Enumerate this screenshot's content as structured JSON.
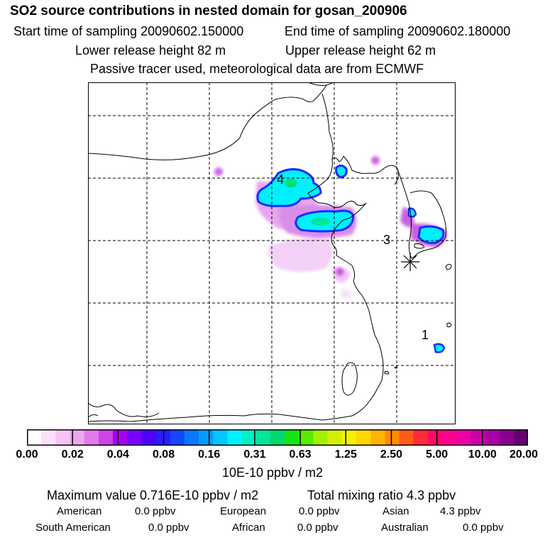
{
  "header": {
    "title": "SO2 source contributions in nested domain for gosan_200906",
    "start_sampling": "Start time of sampling 20090602.150000",
    "end_sampling": "End time of sampling 20090602.180000",
    "lower_release": "Lower release height   82 m",
    "upper_release": "Upper release height   62 m",
    "tracer_note": "Passive tracer used, meteorological data are from ECMWF"
  },
  "map": {
    "source_labels": [
      {
        "id": "source-1",
        "text": "1"
      },
      {
        "id": "source-3",
        "text": "3"
      },
      {
        "id": "source-4",
        "text": "4"
      }
    ],
    "receptor_marker": "asterisk-marker-icon",
    "coast_color": "#000000",
    "grid_style": "dashed"
  },
  "colorbar": {
    "colors": [
      "#ffffff",
      "#fbe2fb",
      "#f5c4f5",
      "#eda6f0",
      "#e07ce9",
      "#cc44e6",
      "#a800f0",
      "#7a00ff",
      "#4e00ff",
      "#2a1cff",
      "#1248ff",
      "#0a78ff",
      "#009cff",
      "#00c8ff",
      "#00f2ff",
      "#00f0c8",
      "#00e69a",
      "#00d870",
      "#14e414",
      "#58ec00",
      "#a2f000",
      "#d4f000",
      "#f4f200",
      "#ffd800",
      "#ffb400",
      "#ff8c00",
      "#ff5c18",
      "#ff2a3a",
      "#ff0a66",
      "#ff0090",
      "#ee00a8",
      "#cc00ac",
      "#aa00a8",
      "#880090",
      "#660070"
    ],
    "tick_labels": [
      "0.00",
      "0.02",
      "0.04",
      "0.08",
      "0.16",
      "0.31",
      "0.63",
      "1.25",
      "2.50",
      "5.00",
      "10.00",
      "20.00"
    ],
    "units": "10E-10 ppbv / m2"
  },
  "summary": {
    "max_value": "Maximum value  0.716E-10 ppbv / m2",
    "total_mixing": "Total mixing ratio        4.3 ppbv",
    "regions": [
      {
        "name": "American",
        "value": "0.0 ppbv"
      },
      {
        "name": "European",
        "value": "0.0 ppbv"
      },
      {
        "name": "Asian",
        "value": "4.3 ppbv"
      },
      {
        "name": "South American",
        "value": "0.0 ppbv"
      },
      {
        "name": "African",
        "value": "0.0 ppbv"
      },
      {
        "name": "Australian",
        "value": "0.0 ppbv"
      }
    ]
  }
}
